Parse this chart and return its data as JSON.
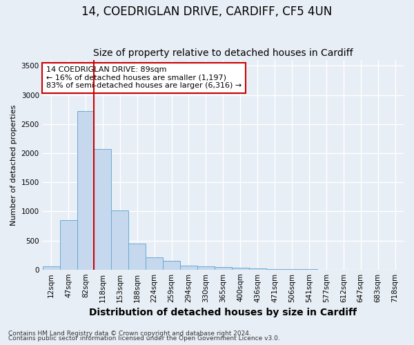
{
  "title_line1": "14, COEDRIGLAN DRIVE, CARDIFF, CF5 4UN",
  "title_line2": "Size of property relative to detached houses in Cardiff",
  "xlabel": "Distribution of detached houses by size in Cardiff",
  "ylabel": "Number of detached properties",
  "categories": [
    "12sqm",
    "47sqm",
    "82sqm",
    "118sqm",
    "153sqm",
    "188sqm",
    "224sqm",
    "259sqm",
    "294sqm",
    "330sqm",
    "365sqm",
    "400sqm",
    "436sqm",
    "471sqm",
    "506sqm",
    "541sqm",
    "577sqm",
    "612sqm",
    "647sqm",
    "683sqm",
    "718sqm"
  ],
  "values": [
    60,
    850,
    2720,
    2070,
    1010,
    450,
    205,
    145,
    70,
    55,
    45,
    30,
    20,
    10,
    5,
    3,
    2,
    1,
    1,
    1,
    1
  ],
  "bar_color": "#c5d8ee",
  "bar_edge_color": "#6aaad4",
  "vline_color": "#cc0000",
  "vline_pos": 2.5,
  "annotation_text": "14 COEDRIGLAN DRIVE: 89sqm\n← 16% of detached houses are smaller (1,197)\n83% of semi-detached houses are larger (6,316) →",
  "annotation_box_facecolor": "#ffffff",
  "annotation_box_edgecolor": "#cc0000",
  "ylim": [
    0,
    3600
  ],
  "yticks": [
    0,
    500,
    1000,
    1500,
    2000,
    2500,
    3000,
    3500
  ],
  "fig_background_color": "#e8eef6",
  "plot_background_color": "#e8eef6",
  "grid_color": "#ffffff",
  "footer_line1": "Contains HM Land Registry data © Crown copyright and database right 2024.",
  "footer_line2": "Contains public sector information licensed under the Open Government Licence v3.0.",
  "title_fontsize": 12,
  "subtitle_fontsize": 10,
  "xlabel_fontsize": 10,
  "ylabel_fontsize": 8,
  "tick_fontsize": 7.5,
  "annotation_fontsize": 8,
  "footer_fontsize": 6.5
}
